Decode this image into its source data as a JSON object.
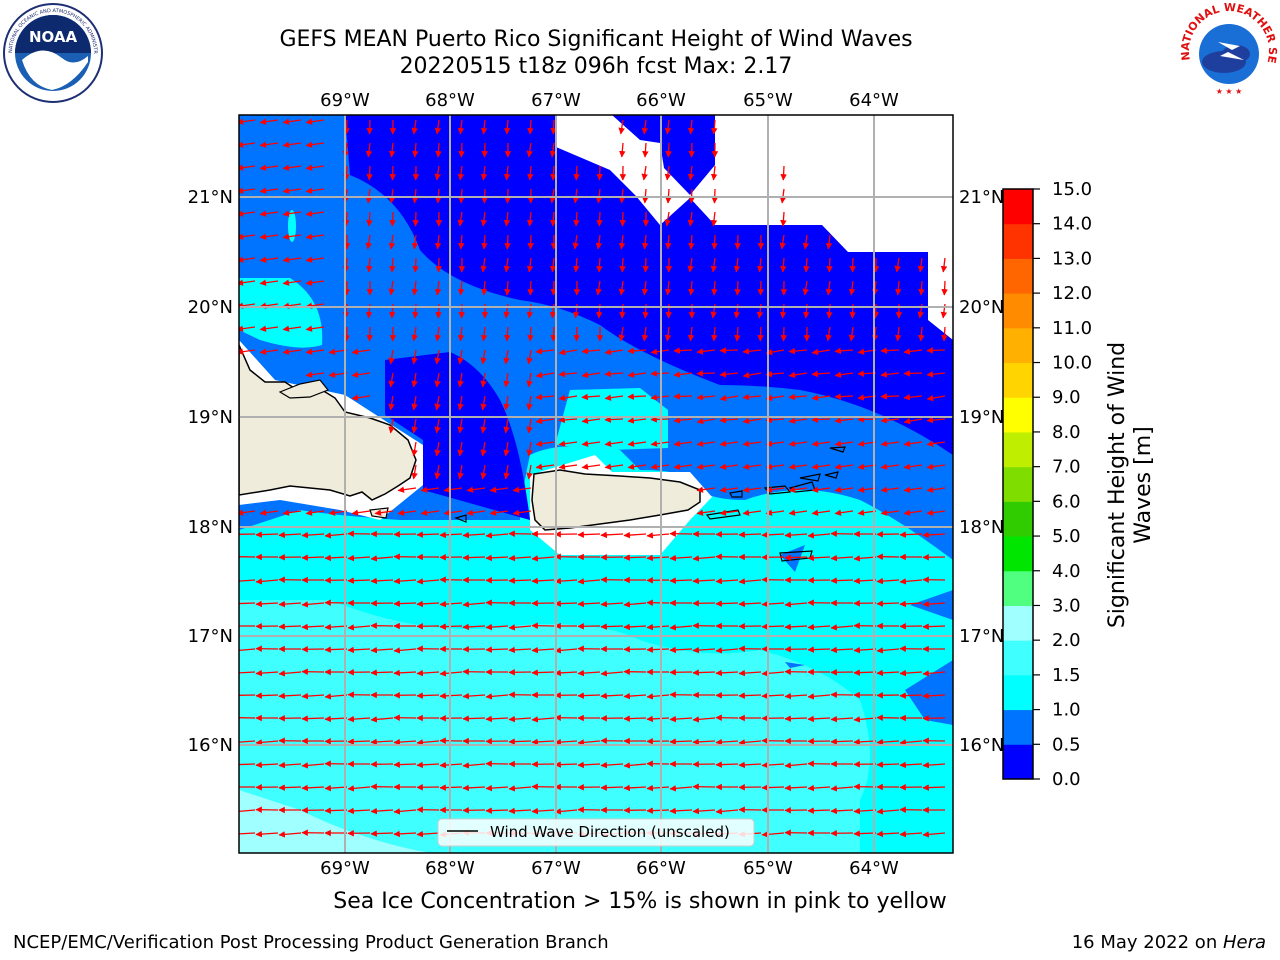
{
  "header": {
    "title_line1": "GEFS MEAN Puerto Rico Significant Height of Wind Waves",
    "title_line2": "20220515 t18z 096h fcst   Max: 2.17"
  },
  "logos": {
    "noaa": "NOAA",
    "noaa_ring": "NATIONAL OCEANIC AND ATMOSPHERIC ADMINISTRATION · U.S. DEPARTMENT OF COMMERCE",
    "nws_ring": "NATIONAL WEATHER SERVICE"
  },
  "map": {
    "lon_labels": [
      "69°W",
      "68°W",
      "67°W",
      "66°W",
      "65°W",
      "64°W"
    ],
    "lat_labels": [
      "21°N",
      "20°N",
      "19°N",
      "18°N",
      "17°N",
      "16°N"
    ],
    "legend_label": "Wind Wave Direction (unscaled)",
    "arrow_color": "#ff0000",
    "land_color": "#efecdc",
    "missing_color": "#ffffff"
  },
  "colorbar": {
    "label_line1": "Significant Height of Wind",
    "label_line2": "Waves [m]",
    "ticks": [
      "0.0",
      "0.5",
      "1.0",
      "1.5",
      "2.0",
      "3.0",
      "4.0",
      "5.0",
      "6.0",
      "7.0",
      "8.0",
      "9.0",
      "10.0",
      "11.0",
      "12.0",
      "13.0",
      "14.0",
      "15.0"
    ],
    "colors": [
      "#0000ff",
      "#0073ff",
      "#00ffff",
      "#40ffff",
      "#a0ffff",
      "#50ff80",
      "#00e600",
      "#30cc00",
      "#80dd00",
      "#c0ee00",
      "#ffff00",
      "#ffd400",
      "#ffb000",
      "#ff8c00",
      "#ff6600",
      "#ff3300",
      "#ff0000"
    ]
  },
  "subtitle": "Sea Ice Concentration > 15% is shown in pink to yellow",
  "footer": {
    "left": "NCEP/EMC/Verification Post Processing Product Generation Branch",
    "right_prefix": "16 May 2022 on ",
    "right_host": "Hera"
  }
}
